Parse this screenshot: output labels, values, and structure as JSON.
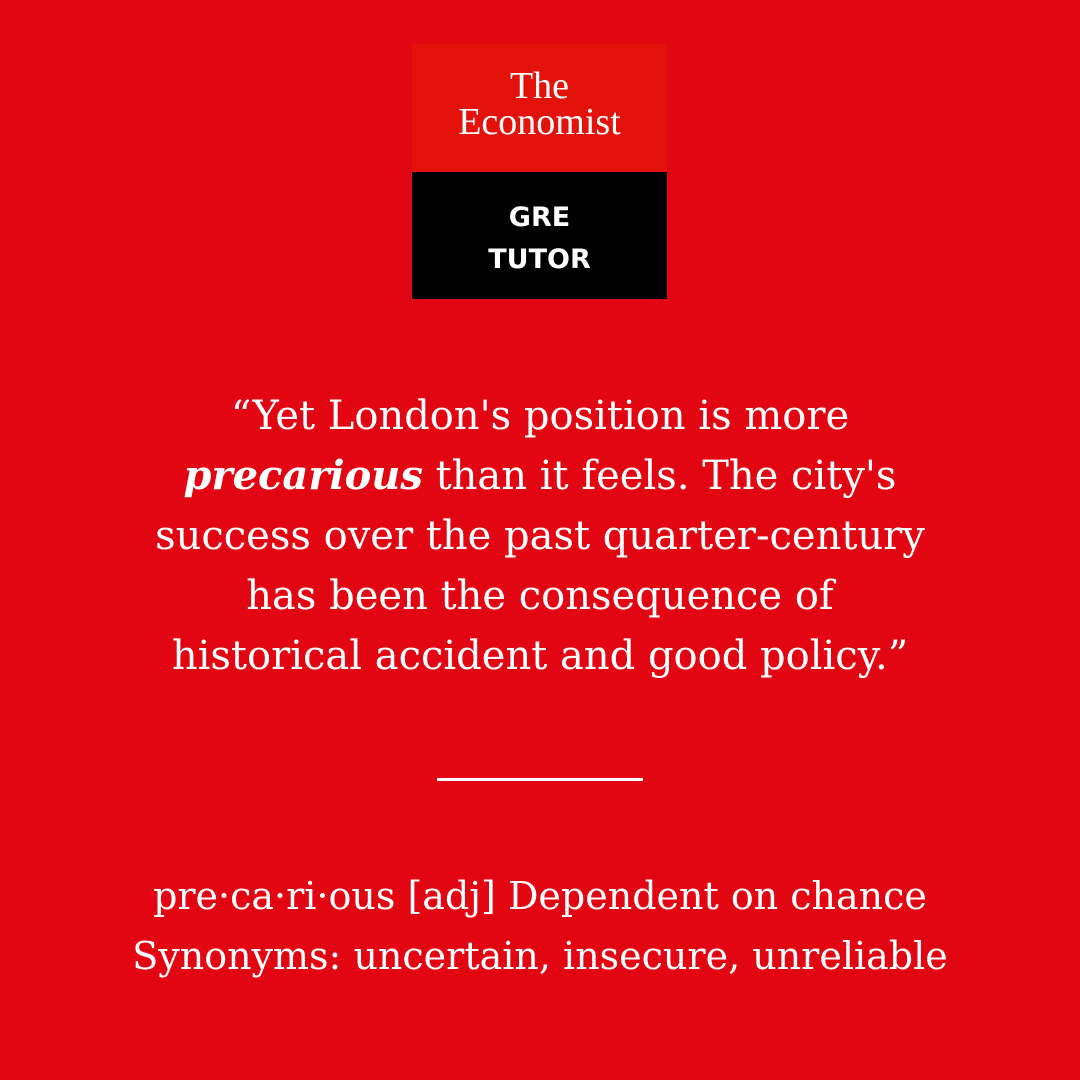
{
  "logo": {
    "brand_line1": "The",
    "brand_line2": "Economist",
    "product_line1": "GRE",
    "product_line2": "TUTOR"
  },
  "quote": {
    "line1": "“Yet London's position is more",
    "keyword": "precarious",
    "line2_rest": " than it feels. The city's",
    "line3": "success over the past quarter-century",
    "line4": "has been the consequence of",
    "line5": "historical accident and good policy.”"
  },
  "definition": {
    "entry": "pre·ca·ri·ous [adj] Dependent on chance",
    "synonyms": "Synonyms: uncertain, insecure, unreliable"
  },
  "colors": {
    "background": "#e20613",
    "logo_red": "#e3120b",
    "logo_black": "#000000",
    "text": "#ffffff"
  }
}
